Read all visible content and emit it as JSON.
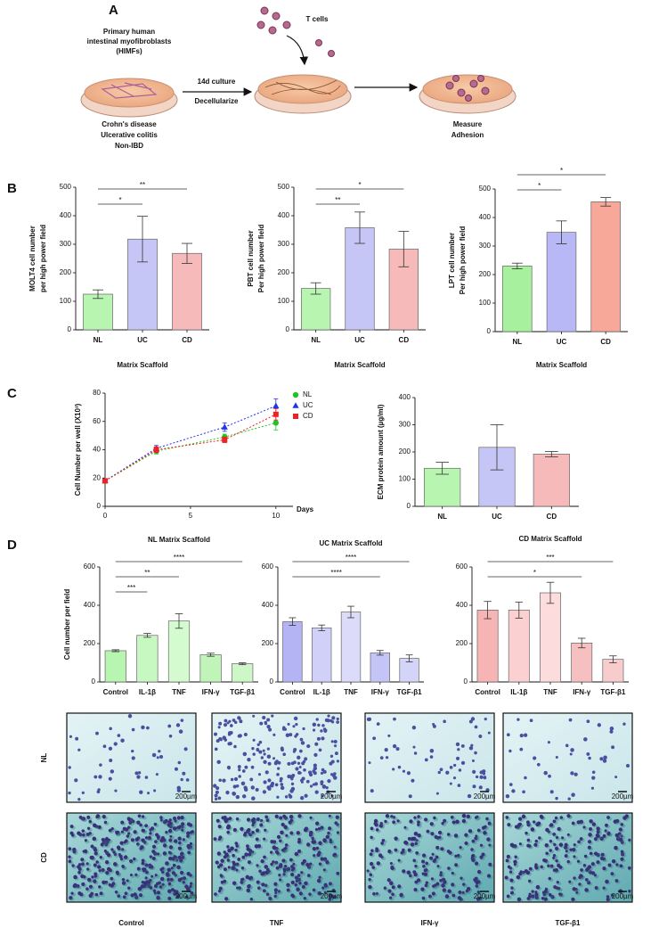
{
  "panel_labels": [
    "A",
    "B",
    "C",
    "D"
  ],
  "diagram": {
    "source": [
      "Primary human",
      "intestinal myofibroblasts",
      "(HIMFs)"
    ],
    "tcells": "T cells",
    "step": [
      "14d culture",
      "Decellularize"
    ],
    "diseases": [
      "Crohn's disease",
      "Ulcerative colitis",
      "Non-IBD"
    ],
    "measure": [
      "Measure",
      "Adhesion"
    ]
  },
  "chart_data": [
    {
      "type": "bar",
      "ylabel": [
        "MOLT4 cell number",
        "per high power field"
      ],
      "xlabel": "Matrix Scaffold",
      "categories": [
        "NL",
        "UC",
        "CD"
      ],
      "values": [
        125,
        318,
        268
      ],
      "errors": [
        15,
        80,
        35
      ],
      "colors": [
        "#b8f5b0",
        "#c6c6f6",
        "#f6baba"
      ],
      "ylim": [
        0,
        500
      ],
      "yticks": [
        0,
        100,
        200,
        300,
        400,
        500
      ],
      "significance": [
        {
          "between": [
            "NL",
            "UC"
          ],
          "label": "*"
        },
        {
          "between": [
            "NL",
            "CD"
          ],
          "label": "**"
        }
      ]
    },
    {
      "type": "bar",
      "ylabel": [
        "PBT cell number",
        "Per high power field"
      ],
      "xlabel": "Matrix Scaffold",
      "categories": [
        "NL",
        "UC",
        "CD"
      ],
      "values": [
        145,
        358,
        283
      ],
      "errors": [
        20,
        55,
        62
      ],
      "colors": [
        "#b8f5b0",
        "#c6c6f6",
        "#f6baba"
      ],
      "ylim": [
        0,
        500
      ],
      "yticks": [
        0,
        100,
        200,
        300,
        400,
        500
      ],
      "significance": [
        {
          "between": [
            "NL",
            "UC"
          ],
          "label": "**"
        },
        {
          "between": [
            "NL",
            "CD"
          ],
          "label": "*"
        }
      ]
    },
    {
      "type": "bar",
      "ylabel": [
        "LPT cell number",
        "Per high power field"
      ],
      "xlabel": "Matrix Scaffold",
      "categories": [
        "NL",
        "UC",
        "CD"
      ],
      "values": [
        230,
        348,
        455
      ],
      "errors": [
        10,
        40,
        15
      ],
      "colors": [
        "#a6f09e",
        "#b8b8f6",
        "#f8a898"
      ],
      "ylim": [
        0,
        500
      ],
      "yticks": [
        0,
        100,
        200,
        300,
        400,
        500
      ],
      "significance": [
        {
          "between": [
            "NL",
            "UC"
          ],
          "label": "*"
        },
        {
          "between": [
            "NL",
            "CD"
          ],
          "label": "*"
        }
      ]
    },
    {
      "type": "line",
      "ylabel": "Cell Number per well (X10³)",
      "xlabel": "Days",
      "x": [
        0,
        3,
        7,
        10
      ],
      "xlim": [
        0,
        11
      ],
      "xticks": [
        0,
        5,
        10
      ],
      "ylim": [
        0,
        80
      ],
      "yticks": [
        0,
        20,
        40,
        60,
        80
      ],
      "series": [
        {
          "name": "NL",
          "color": "#22c422",
          "marker": "circle",
          "values": [
            18,
            39,
            49,
            59
          ],
          "errors": [
            1,
            2,
            2,
            5
          ]
        },
        {
          "name": "UC",
          "color": "#2233ee",
          "marker": "triangle",
          "values": [
            18,
            41,
            56,
            71
          ],
          "errors": [
            1,
            2,
            3,
            5
          ]
        },
        {
          "name": "CD",
          "color": "#ee2222",
          "marker": "square",
          "values": [
            18,
            40,
            47,
            65
          ],
          "errors": [
            1,
            2,
            2,
            4
          ]
        }
      ]
    },
    {
      "type": "bar",
      "ylabel": [
        "ECM protein amount (µg/ml)"
      ],
      "categories": [
        "NL",
        "UC",
        "CD"
      ],
      "values": [
        140,
        217,
        192
      ],
      "errors": [
        22,
        83,
        10
      ],
      "colors": [
        "#b8f5b0",
        "#c6c6f6",
        "#f6baba"
      ],
      "ylim": [
        0,
        400
      ],
      "yticks": [
        0,
        100,
        200,
        300,
        400
      ],
      "significance": []
    },
    {
      "type": "bar",
      "title": "NL Matrix Scaffold",
      "ylabel": [
        "Cell number per field"
      ],
      "categories": [
        "Control",
        "IL-1β",
        "TNF",
        "IFN-γ",
        "TGF-β1"
      ],
      "values": [
        163,
        243,
        318,
        142,
        95
      ],
      "errors": [
        5,
        10,
        38,
        8,
        5
      ],
      "colors": [
        "#b8f5b0",
        "#c8f8c2",
        "#d4fad0",
        "#c0f4b8",
        "#cdf7c7"
      ],
      "ylim": [
        0,
        600
      ],
      "yticks": [
        0,
        200,
        400,
        600
      ],
      "significance": [
        {
          "between": [
            "Control",
            "IL-1β"
          ],
          "label": "***"
        },
        {
          "between": [
            "Control",
            "TNF"
          ],
          "label": "**"
        },
        {
          "between": [
            "Control",
            "TGF-β1"
          ],
          "label": "****"
        }
      ]
    },
    {
      "type": "bar",
      "title": "UC Matrix Scaffold",
      "ylabel": [],
      "categories": [
        "Control",
        "IL-1β",
        "TNF",
        "IFN-γ",
        "TGF-β1"
      ],
      "values": [
        315,
        282,
        365,
        152,
        123
      ],
      "errors": [
        20,
        15,
        30,
        12,
        18
      ],
      "colors": [
        "#b4b4f4",
        "#d0d0f8",
        "#dcdcfa",
        "#c4c4f6",
        "#d4d4f8"
      ],
      "ylim": [
        0,
        600
      ],
      "yticks": [
        0,
        200,
        400,
        600
      ],
      "significance": [
        {
          "between": [
            "Control",
            "IFN-γ"
          ],
          "label": "****"
        },
        {
          "between": [
            "Control",
            "TGF-β1"
          ],
          "label": "****"
        }
      ]
    },
    {
      "type": "bar",
      "title": "CD Matrix Scaffold",
      "ylabel": [],
      "categories": [
        "Control",
        "IL-1β",
        "TNF",
        "IFN-γ",
        "TGF-β1"
      ],
      "values": [
        375,
        375,
        465,
        203,
        118
      ],
      "errors": [
        45,
        42,
        55,
        25,
        18
      ],
      "colors": [
        "#f6b4b4",
        "#fad0d0",
        "#fcdcdc",
        "#f6c0c0",
        "#f8cccc"
      ],
      "ylim": [
        0,
        600
      ],
      "yticks": [
        0,
        200,
        400,
        600
      ],
      "significance": [
        {
          "between": [
            "Control",
            "IFN-γ"
          ],
          "label": "*"
        },
        {
          "between": [
            "Control",
            "TGF-β1"
          ],
          "label": "***"
        }
      ]
    }
  ],
  "micrographs": {
    "rows": [
      "NL",
      "CD"
    ],
    "columns": [
      "Control",
      "TNF",
      "IFN-γ",
      "TGF-β1"
    ],
    "scale_bar": "200µm"
  }
}
